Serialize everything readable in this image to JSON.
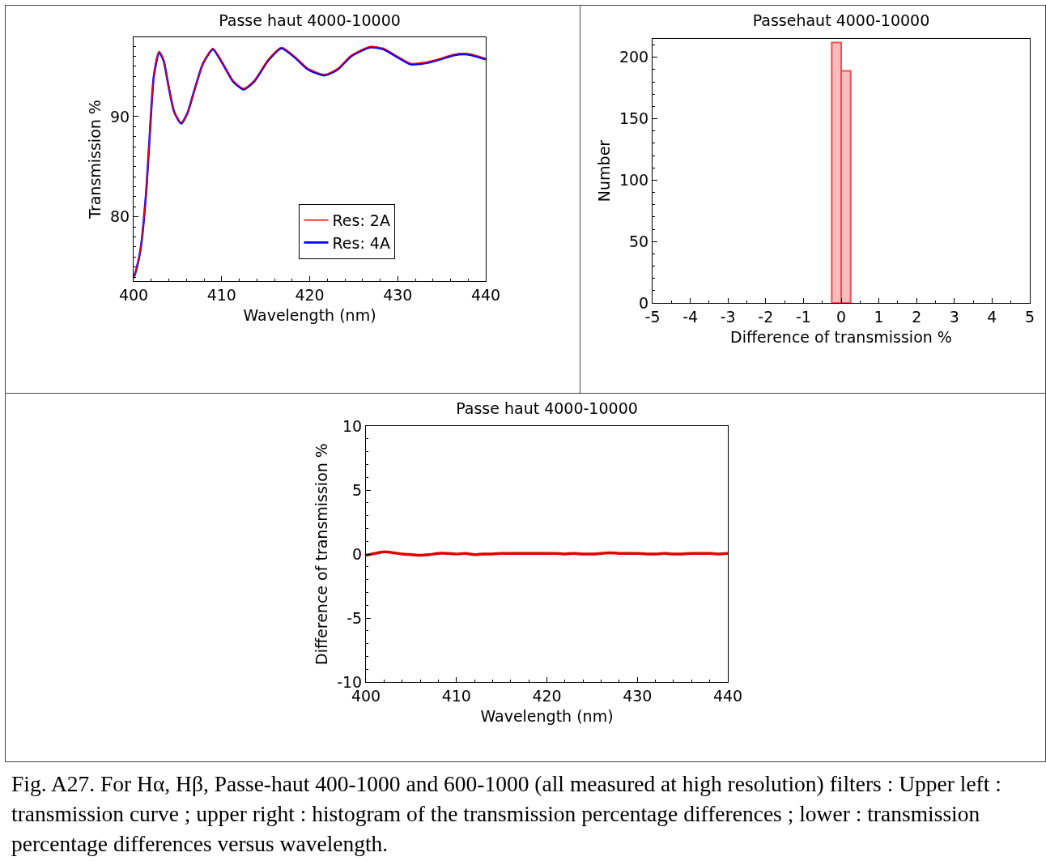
{
  "chart_data": [
    {
      "type": "line",
      "title": "Passe haut 4000-10000",
      "xlabel": "Wavelength (nm)",
      "ylabel": "Transmission %",
      "xlim": [
        400,
        440
      ],
      "xticks": [
        400,
        410,
        420,
        430,
        440
      ],
      "ylim": [
        73.6,
        97.9
      ],
      "yticks": [
        80,
        90
      ],
      "grid": false,
      "legend": "bottom right",
      "marker": "none",
      "line_style": "solid",
      "x": [
        400,
        400.3,
        400.8,
        401.4,
        401.8,
        402.3,
        402.9,
        403.4,
        404.0,
        404.6,
        405.4,
        406.1,
        407.0,
        407.9,
        409.0,
        410.1,
        411.3,
        412.5,
        413.7,
        415.3,
        416.8,
        418.3,
        419.8,
        421.7,
        423.2,
        424.7,
        426.9,
        428.4,
        430.0,
        431.5,
        433.0,
        434.5,
        436.3,
        437.9,
        440
      ],
      "series": [
        {
          "name": "Res: 2A",
          "color": "#ff0000",
          "values": [
            73.9,
            74.7,
            76.8,
            82.1,
            87.6,
            94.0,
            96.5,
            95.7,
            92.9,
            90.5,
            89.4,
            90.3,
            92.9,
            95.3,
            96.8,
            95.4,
            93.6,
            92.8,
            93.6,
            95.7,
            96.9,
            96.0,
            94.8,
            94.2,
            94.8,
            96.1,
            97.0,
            96.8,
            96.0,
            95.3,
            95.4,
            95.7,
            96.2,
            96.3,
            95.8
          ]
        },
        {
          "name": "Res: 4A",
          "color": "#0000ff",
          "values": [
            73.9,
            74.7,
            76.8,
            82.1,
            87.6,
            94.0,
            96.4,
            95.6,
            92.9,
            90.5,
            89.3,
            90.3,
            92.9,
            95.3,
            96.7,
            95.3,
            93.5,
            92.7,
            93.5,
            95.6,
            96.8,
            95.9,
            94.7,
            94.1,
            94.7,
            96.0,
            96.9,
            96.7,
            95.9,
            95.2,
            95.3,
            95.6,
            96.1,
            96.2,
            95.7
          ]
        }
      ]
    },
    {
      "type": "histogram",
      "title": "Passehaut 4000-10000",
      "xlabel": "Difference of transmission %",
      "ylabel": "Number",
      "xlim": [
        -5,
        5
      ],
      "xticks": [
        -5,
        -4,
        -3,
        -2,
        -1,
        0,
        1,
        2,
        3,
        4,
        5
      ],
      "ylim": [
        0,
        215
      ],
      "yticks": [
        0,
        50,
        100,
        150,
        200
      ],
      "grid": false,
      "legend": false,
      "bins": [
        -0.25,
        0,
        0.25
      ],
      "values": [
        212,
        189
      ],
      "color": "#f05050"
    },
    {
      "type": "line",
      "title": "Passe haut 4000-10000",
      "xlabel": "Wavelength (nm)",
      "ylabel": "Difference of transmission %",
      "xlim": [
        400,
        440
      ],
      "xticks": [
        400,
        410,
        420,
        430,
        440
      ],
      "ylim": [
        -10,
        10
      ],
      "yticks": [
        -10,
        -5,
        0,
        5,
        10
      ],
      "grid": false,
      "legend": false,
      "marker": "none",
      "line_style": "solid",
      "x": [
        400,
        401,
        402,
        403,
        404,
        405,
        406,
        407,
        408,
        409,
        410,
        411,
        412,
        413,
        414,
        415,
        416,
        417,
        418,
        419,
        420,
        421,
        422,
        423,
        424,
        425,
        426,
        427,
        428,
        429,
        430,
        431,
        432,
        433,
        434,
        435,
        436,
        437,
        438,
        439,
        440
      ],
      "series": [
        {
          "color": "#e00000",
          "values": [
            -0.1,
            0.05,
            0.17,
            0.1,
            0,
            -0.05,
            -0.1,
            -0.05,
            0.05,
            0.05,
            0,
            0.05,
            -0.05,
            0,
            0,
            0.05,
            0.05,
            0.05,
            0.05,
            0.05,
            0.05,
            0.05,
            0,
            0.05,
            0,
            0,
            0.05,
            0.1,
            0.05,
            0.05,
            0.05,
            0,
            0,
            0.05,
            0,
            0,
            0.05,
            0.05,
            0.05,
            0,
            0.05
          ]
        }
      ],
      "annotations": [
        "Fig. A27. For Hα, Hβ, Passe-haut 400-1000 and 600-1000 (all measured at high resolution) filters : Upper left : transmission curve ; upper right : histogram of the transmission percentage differences ; lower :  transmission percentage differences versus wavelength."
      ]
    }
  ]
}
